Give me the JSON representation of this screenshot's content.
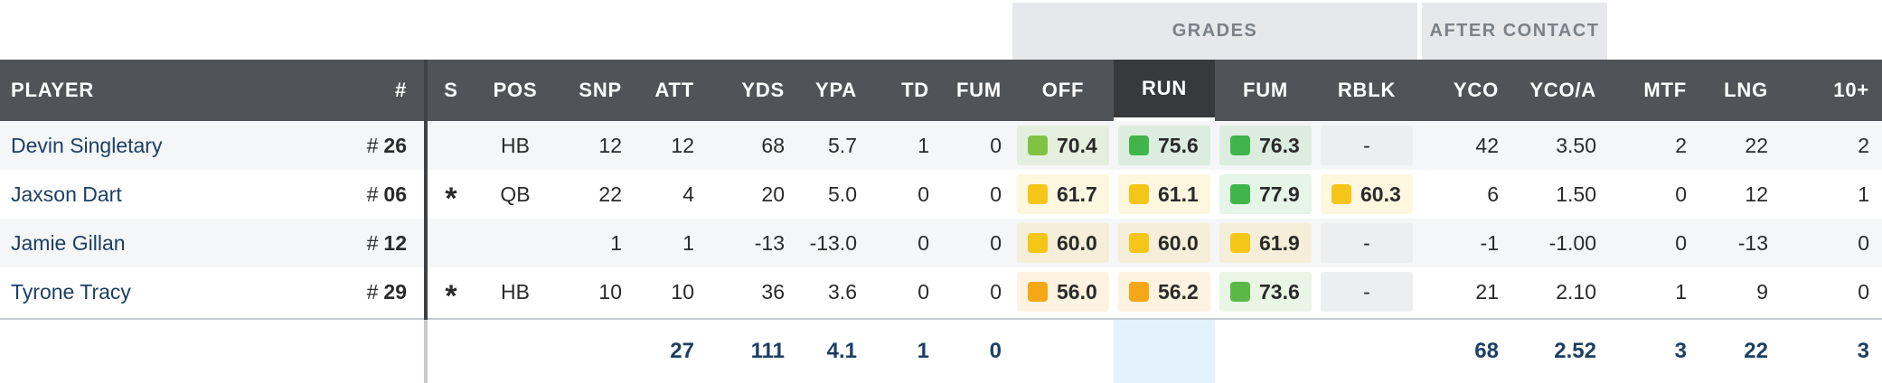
{
  "group_headers": {
    "grades": "GRADES",
    "after_contact": "AFTER CONTACT"
  },
  "columns": {
    "player": "PLAYER",
    "number": "#",
    "s": "S",
    "pos": "POS",
    "snp": "SNP",
    "att": "ATT",
    "yds": "YDS",
    "ypa": "YPA",
    "td": "TD",
    "fum": "FUM",
    "off": "OFF",
    "run": "RUN",
    "fum_grade": "FUM",
    "rblk": "RBLK",
    "yco": "YCO",
    "yco_a": "YCO/A",
    "mtf": "MTF",
    "lng": "LNG",
    "ten_plus": "10+"
  },
  "number_prefix": "#",
  "rows": [
    {
      "player": "Devin Singletary",
      "number": "26",
      "s": "",
      "pos": "HB",
      "snp": "12",
      "att": "12",
      "yds": "68",
      "ypa": "5.7",
      "td": "1",
      "fum": "0",
      "off": "70.4",
      "off_color": "#80c342",
      "run": "75.6",
      "run_color": "#3fb54b",
      "fum_grade": "76.3",
      "fum_grade_color": "#3fb54b",
      "rblk": "-",
      "rblk_color": "",
      "yco": "42",
      "yco_a": "3.50",
      "mtf": "2",
      "lng": "22",
      "ten_plus": "2"
    },
    {
      "player": "Jaxson Dart",
      "number": "06",
      "s": "*",
      "pos": "QB",
      "snp": "22",
      "att": "4",
      "yds": "20",
      "ypa": "5.0",
      "td": "0",
      "fum": "0",
      "off": "61.7",
      "off_color": "#f5c517",
      "run": "61.1",
      "run_color": "#f5c517",
      "fum_grade": "77.9",
      "fum_grade_color": "#3fb54b",
      "rblk": "60.3",
      "rblk_color": "#f5c517",
      "yco": "6",
      "yco_a": "1.50",
      "mtf": "0",
      "lng": "12",
      "ten_plus": "1"
    },
    {
      "player": "Jamie Gillan",
      "number": "12",
      "s": "",
      "pos": "",
      "snp": "1",
      "att": "1",
      "yds": "-13",
      "ypa": "-13.0",
      "td": "0",
      "fum": "0",
      "off": "60.0",
      "off_color": "#f5c517",
      "run": "60.0",
      "run_color": "#f5c517",
      "fum_grade": "61.9",
      "fum_grade_color": "#f5c517",
      "rblk": "-",
      "rblk_color": "",
      "yco": "-1",
      "yco_a": "-1.00",
      "mtf": "0",
      "lng": "-13",
      "ten_plus": "0"
    },
    {
      "player": "Tyrone Tracy",
      "number": "29",
      "s": "*",
      "pos": "HB",
      "snp": "10",
      "att": "10",
      "yds": "36",
      "ypa": "3.6",
      "td": "0",
      "fum": "0",
      "off": "56.0",
      "off_color": "#f5a716",
      "run": "56.2",
      "run_color": "#f5a716",
      "fum_grade": "73.6",
      "fum_grade_color": "#5cb846",
      "rblk": "-",
      "rblk_color": "",
      "yco": "21",
      "yco_a": "2.10",
      "mtf": "1",
      "lng": "9",
      "ten_plus": "0"
    }
  ],
  "totals": {
    "att": "27",
    "yds": "111",
    "ypa": "4.1",
    "td": "1",
    "fum": "0",
    "yco": "68",
    "yco_a": "2.52",
    "mtf": "3",
    "lng": "22",
    "ten_plus": "3"
  }
}
